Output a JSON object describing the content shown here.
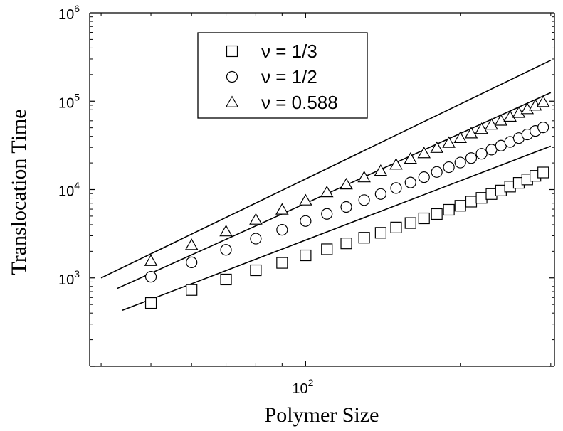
{
  "chart_data": {
    "type": "scatter",
    "xlabel": "Polymer Size",
    "ylabel": "Translocation Time",
    "x_scale": "log",
    "y_scale": "log",
    "xlim": [
      38,
      305
    ],
    "ylim": [
      100,
      1000000
    ],
    "x_ticks": [
      {
        "base": "10",
        "exp": "2",
        "value": 100
      }
    ],
    "y_ticks": [
      {
        "base": "10",
        "exp": "3",
        "value": 1000
      },
      {
        "base": "10",
        "exp": "4",
        "value": 10000
      },
      {
        "base": "10",
        "exp": "5",
        "value": 100000
      },
      {
        "base": "10",
        "exp": "6",
        "value": 1000000
      }
    ],
    "grid": false,
    "legend_position": "top-center",
    "series": [
      {
        "name": "ν = 1/3",
        "marker": "square",
        "x": [
          50,
          60,
          70,
          80,
          90,
          100,
          110,
          120,
          130,
          140,
          150,
          160,
          170,
          180,
          190,
          200,
          210,
          220,
          230,
          240,
          250,
          260,
          270,
          280,
          290
        ],
        "y": [
          520,
          730,
          960,
          1220,
          1480,
          1800,
          2110,
          2460,
          2850,
          3240,
          3720,
          4180,
          4720,
          5280,
          5900,
          6560,
          7300,
          8050,
          8900,
          9750,
          10800,
          11900,
          13000,
          14300,
          15600
        ],
        "fit_line": {
          "x_start": 44,
          "x_end": 300,
          "y_start": 430,
          "y_end": 31000
        }
      },
      {
        "name": "ν = 1/2",
        "marker": "circle",
        "x": [
          50,
          60,
          70,
          80,
          90,
          100,
          110,
          120,
          130,
          140,
          150,
          160,
          170,
          180,
          190,
          200,
          210,
          220,
          230,
          240,
          250,
          260,
          270,
          280,
          290
        ],
        "y": [
          1030,
          1500,
          2080,
          2780,
          3500,
          4400,
          5300,
          6350,
          7600,
          8900,
          10400,
          12000,
          13800,
          15800,
          17900,
          20200,
          22700,
          25400,
          28300,
          31400,
          34600,
          38200,
          42000,
          46000,
          50500
        ],
        "fit_line": {
          "x_start": 43,
          "x_end": 300,
          "y_start": 760,
          "y_end": 125000
        }
      },
      {
        "name": "ν = 0.588",
        "marker": "triangle",
        "x": [
          50,
          60,
          70,
          80,
          90,
          100,
          110,
          120,
          130,
          140,
          150,
          160,
          170,
          180,
          190,
          200,
          210,
          220,
          230,
          240,
          250,
          260,
          270,
          280,
          290
        ],
        "y": [
          1550,
          2350,
          3350,
          4550,
          5900,
          7500,
          9300,
          11400,
          13700,
          16200,
          19100,
          22200,
          25700,
          29500,
          33700,
          38200,
          43100,
          48300,
          54000,
          60000,
          66500,
          73500,
          81000,
          89000,
          97500
        ],
        "fit_line": {
          "x_start": 40,
          "x_end": 300,
          "y_start": 1000,
          "y_end": 290000
        }
      }
    ]
  }
}
